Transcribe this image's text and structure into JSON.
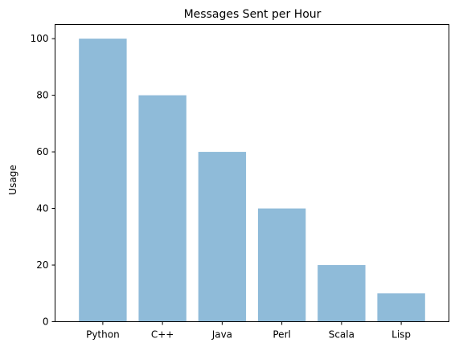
{
  "chart_data": {
    "type": "bar",
    "title": "Messages Sent per Hour",
    "xlabel": "",
    "ylabel": "Usage",
    "categories": [
      "Python",
      "C++",
      "Java",
      "Perl",
      "Scala",
      "Lisp"
    ],
    "values": [
      100,
      80,
      60,
      40,
      20,
      10
    ],
    "ylim": [
      0,
      105
    ],
    "yticks": [
      0,
      20,
      40,
      60,
      80,
      100
    ],
    "grid": false,
    "legend": "none",
    "bar_color": "#1f77b4",
    "bar_alpha": 0.5
  }
}
